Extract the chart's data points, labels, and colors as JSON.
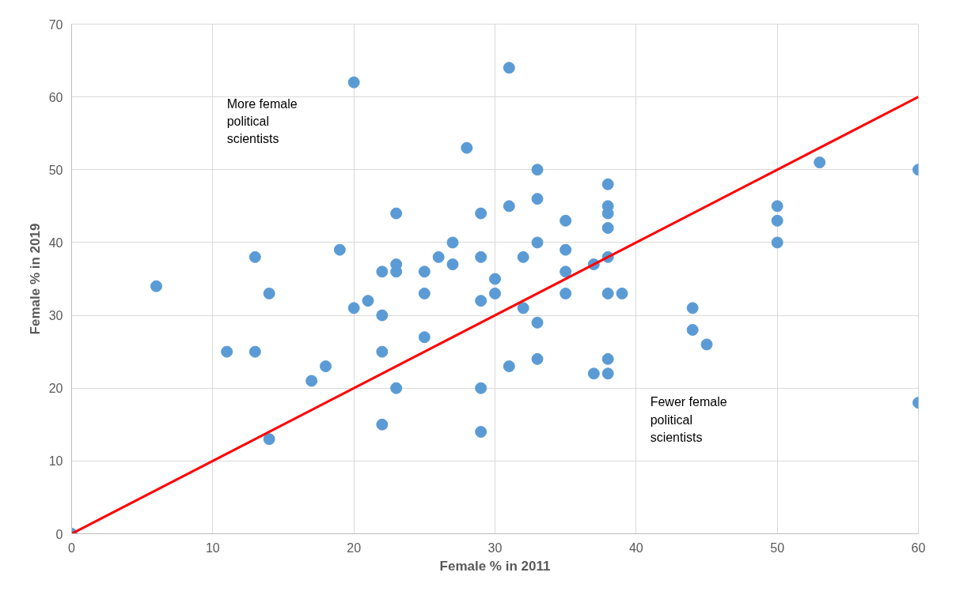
{
  "chart_data": {
    "type": "scatter",
    "xlabel": "Female % in 2011",
    "ylabel": "Female % in 2019",
    "xlim": [
      0,
      60
    ],
    "ylim": [
      0,
      70
    ],
    "xticks": [
      0,
      10,
      20,
      30,
      40,
      50,
      60
    ],
    "yticks": [
      0,
      10,
      20,
      30,
      40,
      50,
      60,
      70
    ],
    "grid": true,
    "marker": "circle",
    "annotations": [
      "More female political scientists",
      "Fewer female political scientists"
    ],
    "series": [
      {
        "color": "#5b9bd5",
        "x": [
          0,
          6,
          11,
          13,
          13,
          14,
          14,
          17,
          18,
          19,
          20,
          20,
          21,
          22,
          22,
          22,
          22,
          23,
          23,
          23,
          23,
          25,
          25,
          25,
          26,
          27,
          27,
          28,
          29,
          29,
          29,
          29,
          29,
          30,
          30,
          31,
          31,
          31,
          32,
          32,
          33,
          33,
          33,
          33,
          33,
          35,
          35,
          35,
          35,
          37,
          37,
          38,
          38,
          38,
          38,
          38,
          38,
          38,
          38,
          39,
          44,
          44,
          45,
          50,
          50,
          50,
          53,
          60,
          60
        ],
        "values": [
          0,
          34,
          25,
          38,
          25,
          33,
          13,
          21,
          23,
          39,
          62,
          31,
          32,
          36,
          30,
          25,
          15,
          44,
          37,
          36,
          20,
          36,
          33,
          27,
          38,
          40,
          37,
          53,
          44,
          38,
          32,
          20,
          14,
          35,
          33,
          64,
          45,
          23,
          38,
          31,
          50,
          46,
          40,
          29,
          24,
          43,
          39,
          36,
          33,
          37,
          22,
          48,
          45,
          44,
          42,
          38,
          33,
          24,
          22,
          33,
          31,
          28,
          26,
          45,
          43,
          40,
          51,
          50,
          18
        ]
      },
      {
        "type": "line",
        "color": "#ff0000",
        "x": [
          0,
          60
        ],
        "values": [
          0,
          60
        ],
        "marker": "none",
        "line_style": "solid"
      }
    ]
  }
}
